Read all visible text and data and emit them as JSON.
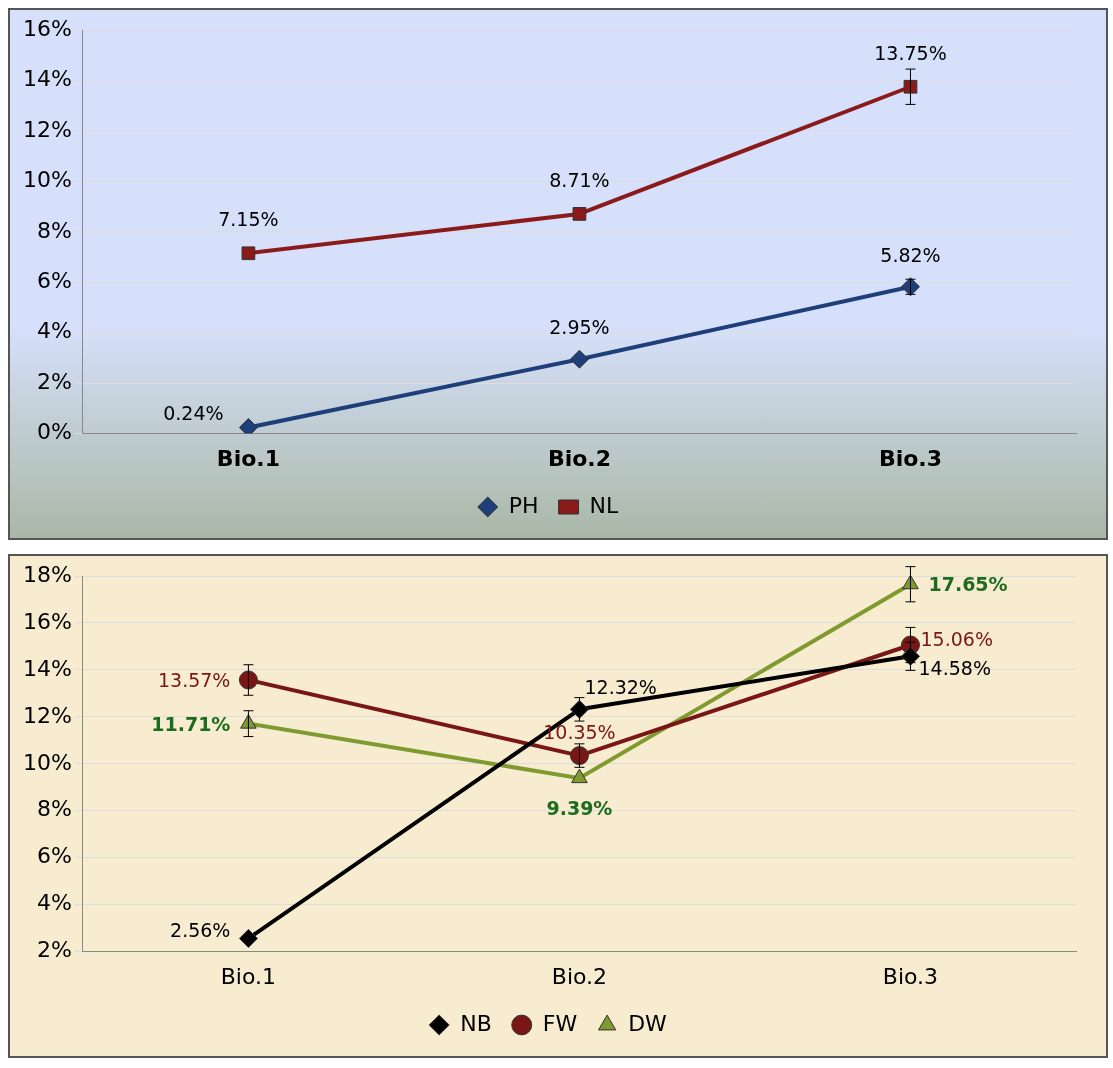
{
  "chart_data": [
    {
      "type": "line",
      "categories": [
        "Bio.1",
        "Bio.2",
        "Bio.3"
      ],
      "ylim": [
        0,
        16
      ],
      "yticks": [
        {
          "value": 0,
          "label": "0%"
        },
        {
          "value": 2,
          "label": "2%"
        },
        {
          "value": 4,
          "label": "4%"
        },
        {
          "value": 6,
          "label": "6%"
        },
        {
          "value": 8,
          "label": "8%"
        },
        {
          "value": 10,
          "label": "10%"
        },
        {
          "value": 12,
          "label": "12%"
        },
        {
          "value": 14,
          "label": "14%"
        },
        {
          "value": 16,
          "label": "16%"
        }
      ],
      "grid": "y",
      "legend": "bottom",
      "series": [
        {
          "name": "PH",
          "color": "#1f3f7a",
          "marker": "diamond",
          "values": [
            0.24,
            2.95,
            5.82
          ],
          "errors": [
            null,
            null,
            0.3
          ],
          "value_labels": [
            "0.24%",
            "2.95%",
            "5.82%"
          ]
        },
        {
          "name": "NL",
          "color": "#8b1a1a",
          "marker": "square",
          "values": [
            7.15,
            8.71,
            13.75
          ],
          "errors": [
            null,
            null,
            0.7
          ],
          "value_labels": [
            "7.15%",
            "8.71%",
            "13.75%"
          ]
        }
      ]
    },
    {
      "type": "line",
      "categories": [
        "Bio.1",
        "Bio.2",
        "Bio.3"
      ],
      "ylim": [
        2,
        18
      ],
      "yticks": [
        {
          "value": 2,
          "label": "2%"
        },
        {
          "value": 4,
          "label": "4%"
        },
        {
          "value": 6,
          "label": "6%"
        },
        {
          "value": 8,
          "label": "8%"
        },
        {
          "value": 10,
          "label": "10%"
        },
        {
          "value": 12,
          "label": "12%"
        },
        {
          "value": 14,
          "label": "14%"
        },
        {
          "value": 16,
          "label": "16%"
        },
        {
          "value": 18,
          "label": "18%"
        }
      ],
      "grid": "y",
      "legend": "bottom",
      "series": [
        {
          "name": "NB",
          "color": "#000000",
          "marker": "diamond",
          "values": [
            2.56,
            12.32,
            14.58
          ],
          "errors": [
            null,
            0.5,
            0.6
          ],
          "value_labels": [
            "2.56%",
            "12.32%",
            "14.58%"
          ]
        },
        {
          "name": "FW",
          "color": "#7a1616",
          "marker": "circle",
          "values": [
            13.57,
            10.35,
            15.06
          ],
          "errors": [
            0.65,
            0.5,
            0.75
          ],
          "value_labels": [
            "13.57%",
            "10.35%",
            "15.06%"
          ]
        },
        {
          "name": "DW",
          "color": "#7f9a2e",
          "marker": "triangle",
          "values": [
            11.71,
            9.39,
            17.65
          ],
          "errors": [
            0.55,
            null,
            0.75
          ],
          "value_labels": [
            "11.71%",
            "9.39%",
            "17.65%"
          ]
        }
      ]
    }
  ]
}
